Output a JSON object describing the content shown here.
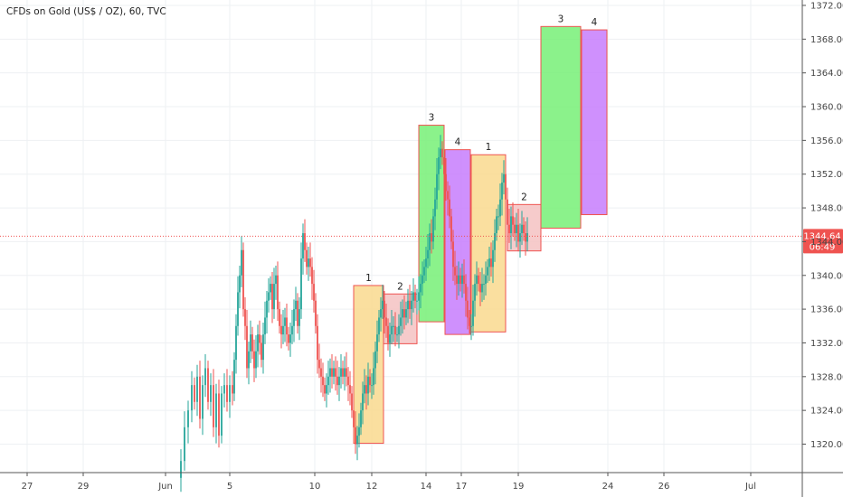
{
  "colors": {
    "up": "#26a69a",
    "down": "#ef5350",
    "price_line": "#ef5350",
    "badge_bg": "#ef5350",
    "badge_text": "#ffffff"
  },
  "chart_data": {
    "type": "candlestick",
    "title": "CFDs on Gold (US$ / OZ), 60, TVC",
    "ylim": [
      1317,
      1373
    ],
    "y_ticks": [
      1320,
      1324,
      1328,
      1332,
      1336,
      1340,
      1344,
      1348,
      1352,
      1356,
      1360,
      1364,
      1368,
      1372
    ],
    "x_ticks": [
      {
        "label": "27",
        "x": 30
      },
      {
        "label": "29",
        "x": 92
      },
      {
        "label": "Jun",
        "x": 183
      },
      {
        "label": "5",
        "x": 254
      },
      {
        "label": "10",
        "x": 348
      },
      {
        "label": "12",
        "x": 411
      },
      {
        "label": "14",
        "x": 471
      },
      {
        "label": "17",
        "x": 510
      },
      {
        "label": "19",
        "x": 573
      },
      {
        "label": "24",
        "x": 672
      },
      {
        "label": "26",
        "x": 734
      },
      {
        "label": "Jul",
        "x": 830
      }
    ],
    "current_price": {
      "value": 1344.64,
      "label": "1344.64",
      "countdown": "06:49"
    },
    "price_path": [
      [
        196,
        1316
      ],
      [
        200,
        1318
      ],
      [
        204,
        1322
      ],
      [
        208,
        1324
      ],
      [
        212,
        1327
      ],
      [
        215,
        1325
      ],
      [
        218,
        1328
      ],
      [
        221,
        1323
      ],
      [
        224,
        1327
      ],
      [
        227,
        1329
      ],
      [
        230,
        1325
      ],
      [
        233,
        1327
      ],
      [
        236,
        1322
      ],
      [
        239,
        1326
      ],
      [
        242,
        1321
      ],
      [
        245,
        1326
      ],
      [
        248,
        1327
      ],
      [
        251,
        1325
      ],
      [
        254,
        1327
      ],
      [
        257,
        1326
      ],
      [
        259,
        1330
      ],
      [
        261,
        1334
      ],
      [
        263,
        1338
      ],
      [
        265,
        1340
      ],
      [
        267,
        1343
      ],
      [
        269,
        1336
      ],
      [
        271,
        1334
      ],
      [
        273,
        1329
      ],
      [
        275,
        1331
      ],
      [
        277,
        1333
      ],
      [
        279,
        1331
      ],
      [
        281,
        1329
      ],
      [
        283,
        1331
      ],
      [
        285,
        1333
      ],
      [
        287,
        1332
      ],
      [
        289,
        1330
      ],
      [
        291,
        1333
      ],
      [
        293,
        1335
      ],
      [
        295,
        1337
      ],
      [
        297,
        1338
      ],
      [
        299,
        1339
      ],
      [
        301,
        1336
      ],
      [
        303,
        1339
      ],
      [
        305,
        1340
      ],
      [
        307,
        1336
      ],
      [
        309,
        1334
      ],
      [
        311,
        1333
      ],
      [
        313,
        1334
      ],
      [
        315,
        1335
      ],
      [
        317,
        1333
      ],
      [
        319,
        1332
      ],
      [
        321,
        1333
      ],
      [
        323,
        1334
      ],
      [
        325,
        1336
      ],
      [
        327,
        1337
      ],
      [
        329,
        1334
      ],
      [
        331,
        1336
      ],
      [
        333,
        1342
      ],
      [
        335,
        1345
      ],
      [
        337,
        1343
      ],
      [
        339,
        1341
      ],
      [
        341,
        1342
      ],
      [
        343,
        1341
      ],
      [
        345,
        1339
      ],
      [
        347,
        1337
      ],
      [
        349,
        1334
      ],
      [
        351,
        1330
      ],
      [
        353,
        1329
      ],
      [
        355,
        1328
      ],
      [
        357,
        1327
      ],
      [
        359,
        1326
      ],
      [
        361,
        1327
      ],
      [
        363,
        1328
      ],
      [
        365,
        1329
      ],
      [
        367,
        1328
      ],
      [
        369,
        1329
      ],
      [
        371,
        1328
      ],
      [
        373,
        1327
      ],
      [
        375,
        1328
      ],
      [
        377,
        1329
      ],
      [
        379,
        1328
      ],
      [
        381,
        1329
      ],
      [
        383,
        1328
      ],
      [
        385,
        1327
      ],
      [
        387,
        1326
      ],
      [
        389,
        1324
      ],
      [
        391,
        1322
      ],
      [
        393,
        1320
      ],
      [
        395,
        1321
      ],
      [
        397,
        1322
      ],
      [
        399,
        1324
      ],
      [
        401,
        1326
      ],
      [
        403,
        1327
      ],
      [
        405,
        1326
      ],
      [
        407,
        1328
      ],
      [
        409,
        1327
      ],
      [
        411,
        1327
      ],
      [
        413,
        1329
      ],
      [
        415,
        1331
      ],
      [
        417,
        1333
      ],
      [
        419,
        1335
      ],
      [
        421,
        1336
      ],
      [
        423,
        1337
      ],
      [
        425,
        1335
      ],
      [
        427,
        1334
      ],
      [
        429,
        1332
      ],
      [
        431,
        1333
      ],
      [
        433,
        1334
      ],
      [
        435,
        1334
      ],
      [
        437,
        1333
      ],
      [
        439,
        1333
      ],
      [
        441,
        1334
      ],
      [
        443,
        1335
      ],
      [
        445,
        1336
      ],
      [
        447,
        1335
      ],
      [
        449,
        1336
      ],
      [
        451,
        1337
      ],
      [
        453,
        1336
      ],
      [
        455,
        1337
      ],
      [
        457,
        1338
      ],
      [
        459,
        1337
      ],
      [
        461,
        1337
      ],
      [
        463,
        1338
      ],
      [
        465,
        1339
      ],
      [
        467,
        1340
      ],
      [
        469,
        1341
      ],
      [
        471,
        1342
      ],
      [
        473,
        1343
      ],
      [
        475,
        1345
      ],
      [
        477,
        1344
      ],
      [
        479,
        1347
      ],
      [
        481,
        1349
      ],
      [
        483,
        1352
      ],
      [
        485,
        1354
      ],
      [
        487,
        1355
      ],
      [
        489,
        1354
      ],
      [
        491,
        1352
      ],
      [
        493,
        1350
      ],
      [
        495,
        1349
      ],
      [
        497,
        1347
      ],
      [
        499,
        1344
      ],
      [
        501,
        1341
      ],
      [
        503,
        1340
      ],
      [
        505,
        1339
      ],
      [
        507,
        1340
      ],
      [
        509,
        1339
      ],
      [
        511,
        1340
      ],
      [
        513,
        1339
      ],
      [
        515,
        1337
      ],
      [
        517,
        1335
      ],
      [
        519,
        1334
      ],
      [
        521,
        1334
      ],
      [
        523,
        1337
      ],
      [
        525,
        1339
      ],
      [
        527,
        1340
      ],
      [
        529,
        1339
      ],
      [
        531,
        1338
      ],
      [
        533,
        1339
      ],
      [
        535,
        1339
      ],
      [
        537,
        1340
      ],
      [
        539,
        1341
      ],
      [
        541,
        1342
      ],
      [
        543,
        1341
      ],
      [
        545,
        1343
      ],
      [
        547,
        1345
      ],
      [
        549,
        1347
      ],
      [
        551,
        1347
      ],
      [
        553,
        1349
      ],
      [
        555,
        1351
      ],
      [
        557,
        1352
      ],
      [
        559,
        1349
      ],
      [
        561,
        1346
      ],
      [
        563,
        1345
      ],
      [
        565,
        1347
      ],
      [
        567,
        1346
      ],
      [
        569,
        1345
      ],
      [
        571,
        1346
      ],
      [
        573,
        1344
      ],
      [
        575,
        1345
      ],
      [
        577,
        1346
      ],
      [
        579,
        1345
      ],
      [
        581,
        1344
      ],
      [
        583,
        1345
      ]
    ],
    "boxes": [
      {
        "label": "1",
        "x0": 391,
        "x1": 424,
        "y_low": 1320.1,
        "y_high": 1338.8,
        "fill": "#f9d98e",
        "stroke": "#ef5350"
      },
      {
        "label": "2",
        "x0": 424,
        "x1": 461,
        "y_low": 1331.9,
        "y_high": 1337.8,
        "fill": "#f4c2c2",
        "stroke": "#ef5350"
      },
      {
        "label": "3",
        "x0": 463,
        "x1": 491,
        "y_low": 1334.5,
        "y_high": 1357.8,
        "fill": "#77f077",
        "stroke": "#ef5350"
      },
      {
        "label": "4",
        "x0": 492,
        "x1": 520,
        "y_low": 1333.0,
        "y_high": 1354.9,
        "fill": "#c77dfd",
        "stroke": "#ef5350"
      },
      {
        "label": "1",
        "x0": 521,
        "x1": 559,
        "y_low": 1333.3,
        "y_high": 1354.3,
        "fill": "#f9d98e",
        "stroke": "#ef5350"
      },
      {
        "label": "2",
        "x0": 561,
        "x1": 598,
        "y_low": 1342.9,
        "y_high": 1348.4,
        "fill": "#f4c2c2",
        "stroke": "#ef5350"
      },
      {
        "label": "3",
        "x0": 598,
        "x1": 642,
        "y_low": 1345.6,
        "y_high": 1369.5,
        "fill": "#77f077",
        "stroke": "#ef5350"
      },
      {
        "label": "4",
        "x0": 643,
        "x1": 671,
        "y_low": 1347.2,
        "y_high": 1369.1,
        "fill": "#c77dfd",
        "stroke": "#ef5350"
      }
    ]
  }
}
